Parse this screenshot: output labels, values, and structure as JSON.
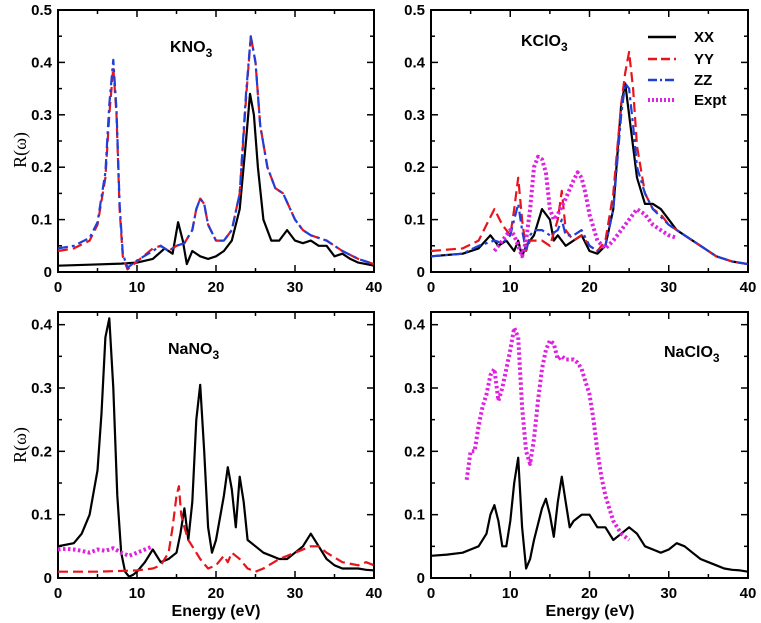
{
  "colors": {
    "XX": "#000000",
    "YY": "#e8141c",
    "ZZ": "#1f3fd9",
    "Expt": "#e020e0"
  },
  "legend": {
    "position": "top-right of KClO3 panel",
    "items": [
      "XX",
      "YY",
      "ZZ",
      "Expt"
    ]
  },
  "chart_data": [
    {
      "type": "line",
      "id": "p0",
      "title": {
        "base": "KNO",
        "sub": "3"
      },
      "xlabel": "",
      "ylabel": "R(ω)",
      "xlim": [
        0,
        40
      ],
      "ylim": [
        0,
        0.5
      ],
      "xticks": [
        0,
        10,
        20,
        30,
        40
      ],
      "yticks": [
        0,
        0.1,
        0.2,
        0.3,
        0.4,
        0.5
      ],
      "ytick_labels": [
        "0",
        "0.1",
        "0.2",
        "0.3",
        "0.4",
        "0.5"
      ],
      "grid": false,
      "series": [
        {
          "name": "XX",
          "style": "solid",
          "x": [
            0,
            4,
            8,
            10,
            12,
            13.5,
            14.5,
            15.2,
            15.8,
            16.3,
            17,
            18,
            19,
            20,
            21,
            22,
            23,
            23.8,
            24.3,
            24.8,
            25.3,
            26,
            27,
            28,
            29,
            30,
            31,
            32,
            33,
            34,
            35,
            36,
            37,
            38,
            39,
            40
          ],
          "y": [
            0.012,
            0.014,
            0.016,
            0.018,
            0.025,
            0.045,
            0.035,
            0.095,
            0.06,
            0.015,
            0.04,
            0.03,
            0.025,
            0.03,
            0.04,
            0.06,
            0.12,
            0.25,
            0.34,
            0.3,
            0.2,
            0.1,
            0.06,
            0.06,
            0.08,
            0.06,
            0.055,
            0.06,
            0.05,
            0.05,
            0.03,
            0.035,
            0.025,
            0.018,
            0.015,
            0.012
          ]
        },
        {
          "name": "YY",
          "style": "dash",
          "x": [
            0,
            2,
            4,
            5,
            6,
            6.5,
            7,
            7.4,
            7.8,
            8.2,
            8.8,
            10,
            12,
            13,
            14,
            15,
            16,
            17,
            17.5,
            18,
            18.5,
            19,
            20,
            21,
            22,
            23,
            23.8,
            24.4,
            25,
            25.6,
            26.5,
            27.5,
            28.5,
            30,
            31,
            32,
            33,
            34,
            36,
            38,
            40
          ],
          "y": [
            0.04,
            0.045,
            0.06,
            0.09,
            0.18,
            0.3,
            0.39,
            0.3,
            0.12,
            0.03,
            0.005,
            0.02,
            0.045,
            0.05,
            0.04,
            0.05,
            0.055,
            0.08,
            0.12,
            0.14,
            0.13,
            0.09,
            0.06,
            0.06,
            0.08,
            0.15,
            0.33,
            0.45,
            0.4,
            0.28,
            0.2,
            0.16,
            0.15,
            0.1,
            0.08,
            0.07,
            0.065,
            0.06,
            0.04,
            0.025,
            0.015
          ]
        },
        {
          "name": "ZZ",
          "style": "dashdot",
          "x": [
            0,
            2,
            4,
            5,
            6,
            6.5,
            7,
            7.4,
            7.8,
            8.2,
            8.8,
            10,
            12,
            13,
            14,
            15,
            16,
            17,
            17.5,
            18,
            18.5,
            19,
            20,
            21,
            22,
            23,
            23.8,
            24.4,
            25,
            25.6,
            26.5,
            27.5,
            28.5,
            30,
            31,
            32,
            33,
            34,
            36,
            38,
            40
          ],
          "y": [
            0.045,
            0.05,
            0.065,
            0.095,
            0.19,
            0.32,
            0.405,
            0.31,
            0.13,
            0.035,
            0.008,
            0.022,
            0.04,
            0.05,
            0.04,
            0.05,
            0.055,
            0.08,
            0.12,
            0.14,
            0.13,
            0.09,
            0.06,
            0.06,
            0.08,
            0.15,
            0.34,
            0.45,
            0.4,
            0.28,
            0.2,
            0.16,
            0.15,
            0.1,
            0.08,
            0.07,
            0.065,
            0.06,
            0.04,
            0.025,
            0.015
          ]
        }
      ]
    },
    {
      "type": "line",
      "id": "p1",
      "title": {
        "base": "KClO",
        "sub": "3"
      },
      "xlabel": "",
      "ylabel": "",
      "xlim": [
        0,
        40
      ],
      "ylim": [
        0,
        0.5
      ],
      "xticks": [
        0,
        10,
        20,
        30,
        40
      ],
      "yticks": [
        0,
        0.1,
        0.2,
        0.3,
        0.4,
        0.5
      ],
      "ytick_labels": [
        "0",
        "0.1",
        "0.2",
        "0.3",
        "0.4",
        "0.5"
      ],
      "grid": false,
      "series": [
        {
          "name": "XX",
          "style": "solid",
          "x": [
            0,
            4,
            6,
            7.5,
            8.5,
            9.5,
            10.5,
            11,
            11.5,
            12,
            13,
            14,
            15,
            15.5,
            16,
            17,
            18,
            19,
            20,
            21,
            22,
            23,
            24,
            24.5,
            25,
            26,
            27,
            28,
            29,
            30,
            31,
            32,
            34,
            36,
            38,
            40
          ],
          "y": [
            0.03,
            0.035,
            0.045,
            0.07,
            0.05,
            0.06,
            0.04,
            0.06,
            0.03,
            0.05,
            0.07,
            0.12,
            0.1,
            0.06,
            0.07,
            0.05,
            0.06,
            0.07,
            0.04,
            0.035,
            0.05,
            0.12,
            0.32,
            0.36,
            0.3,
            0.18,
            0.13,
            0.13,
            0.12,
            0.1,
            0.08,
            0.07,
            0.05,
            0.03,
            0.02,
            0.015
          ]
        },
        {
          "name": "YY",
          "style": "dash",
          "x": [
            0,
            4,
            6,
            7,
            8,
            9,
            10,
            10.5,
            11,
            11.5,
            12,
            12.5,
            13,
            14,
            15,
            16,
            16.5,
            17,
            18,
            19,
            20,
            21,
            22,
            23,
            24,
            24.5,
            25,
            25.5,
            26,
            27,
            28,
            29,
            30,
            32,
            34,
            36,
            38,
            40
          ],
          "y": [
            0.04,
            0.045,
            0.06,
            0.09,
            0.12,
            0.09,
            0.07,
            0.12,
            0.18,
            0.1,
            0.04,
            0.06,
            0.06,
            0.06,
            0.05,
            0.1,
            0.155,
            0.08,
            0.06,
            0.07,
            0.05,
            0.04,
            0.06,
            0.15,
            0.32,
            0.38,
            0.42,
            0.35,
            0.24,
            0.15,
            0.12,
            0.11,
            0.09,
            0.07,
            0.05,
            0.03,
            0.02,
            0.015
          ]
        },
        {
          "name": "ZZ",
          "style": "dashdot",
          "x": [
            0,
            4,
            6,
            8,
            9,
            10,
            10.5,
            11,
            11.5,
            12,
            12.5,
            13,
            14,
            15,
            16,
            16.5,
            17,
            18,
            19,
            20,
            21,
            22,
            23,
            24,
            24.5,
            25,
            25.5,
            26,
            27,
            28,
            30,
            32,
            34,
            36,
            38,
            40
          ],
          "y": [
            0.03,
            0.035,
            0.05,
            0.06,
            0.055,
            0.07,
            0.1,
            0.13,
            0.08,
            0.04,
            0.07,
            0.08,
            0.08,
            0.07,
            0.08,
            0.1,
            0.07,
            0.07,
            0.08,
            0.05,
            0.04,
            0.05,
            0.12,
            0.3,
            0.36,
            0.35,
            0.28,
            0.2,
            0.15,
            0.12,
            0.09,
            0.07,
            0.05,
            0.03,
            0.02,
            0.015
          ]
        },
        {
          "name": "Expt",
          "style": "dot",
          "x": [
            8,
            9,
            10,
            10.5,
            11,
            11.5,
            12,
            12.5,
            13,
            13.5,
            14,
            14.5,
            15,
            15.5,
            16,
            17,
            18,
            18.5,
            19,
            19.5,
            20,
            21,
            22,
            23,
            24,
            25,
            26,
            27,
            28,
            29,
            30,
            31
          ],
          "y": [
            0.04,
            0.06,
            0.08,
            0.07,
            0.05,
            0.03,
            0.06,
            0.12,
            0.2,
            0.22,
            0.215,
            0.19,
            0.12,
            0.1,
            0.11,
            0.14,
            0.175,
            0.19,
            0.18,
            0.15,
            0.11,
            0.06,
            0.045,
            0.06,
            0.08,
            0.1,
            0.12,
            0.11,
            0.09,
            0.08,
            0.07,
            0.065
          ]
        }
      ]
    },
    {
      "type": "line",
      "id": "p2",
      "title": {
        "base": "NaNO",
        "sub": "3"
      },
      "xlabel": "Energy (eV)",
      "ylabel": "R(ω)",
      "xlim": [
        0,
        40
      ],
      "ylim": [
        0,
        0.42
      ],
      "xticks": [
        0,
        10,
        20,
        30,
        40
      ],
      "yticks": [
        0,
        0.1,
        0.2,
        0.3,
        0.4
      ],
      "ytick_labels": [
        "0",
        "0.1",
        "0.2",
        "0.3",
        "0.4"
      ],
      "grid": false,
      "series": [
        {
          "name": "XX",
          "style": "solid",
          "x": [
            0,
            2,
            3,
            4,
            5,
            5.5,
            6,
            6.5,
            7,
            7.5,
            8,
            8.5,
            9,
            9.5,
            10,
            11,
            12,
            13,
            14,
            15,
            15.5,
            16,
            16.5,
            17,
            17.5,
            18,
            18.5,
            19,
            19.5,
            20,
            21,
            21.5,
            22,
            22.5,
            23,
            23.5,
            24,
            25,
            26,
            27,
            28,
            29,
            30,
            31,
            32,
            33,
            34,
            35,
            36,
            37,
            38,
            39,
            40
          ],
          "y": [
            0.05,
            0.055,
            0.07,
            0.1,
            0.17,
            0.26,
            0.38,
            0.41,
            0.3,
            0.13,
            0.04,
            0.01,
            0.002,
            0.005,
            0.01,
            0.025,
            0.045,
            0.025,
            0.03,
            0.04,
            0.07,
            0.11,
            0.06,
            0.12,
            0.25,
            0.305,
            0.2,
            0.08,
            0.04,
            0.06,
            0.13,
            0.175,
            0.14,
            0.08,
            0.16,
            0.12,
            0.06,
            0.05,
            0.04,
            0.035,
            0.03,
            0.03,
            0.04,
            0.05,
            0.07,
            0.05,
            0.03,
            0.02,
            0.015,
            0.015,
            0.015,
            0.013,
            0.012
          ]
        },
        {
          "name": "YY",
          "style": "dash",
          "x": [
            0,
            5,
            10,
            12,
            13,
            14,
            14.5,
            15,
            15.3,
            15.6,
            16,
            16.5,
            17,
            18,
            19,
            20,
            21,
            21.5,
            22,
            23,
            24,
            25,
            26,
            28,
            30,
            32,
            33,
            34,
            36,
            38,
            39,
            40
          ],
          "y": [
            0.01,
            0.01,
            0.012,
            0.015,
            0.02,
            0.04,
            0.08,
            0.13,
            0.145,
            0.1,
            0.08,
            0.06,
            0.05,
            0.03,
            0.015,
            0.02,
            0.035,
            0.025,
            0.04,
            0.03,
            0.015,
            0.01,
            0.015,
            0.03,
            0.04,
            0.05,
            0.05,
            0.04,
            0.025,
            0.02,
            0.025,
            0.02
          ]
        },
        {
          "name": "Expt",
          "style": "dot",
          "x": [
            0,
            1,
            2,
            3,
            4,
            5,
            6,
            7,
            8,
            9,
            10,
            11,
            12
          ],
          "y": [
            0.045,
            0.046,
            0.045,
            0.043,
            0.04,
            0.045,
            0.043,
            0.047,
            0.04,
            0.035,
            0.04,
            0.045,
            0.05
          ]
        }
      ]
    },
    {
      "type": "line",
      "id": "p3",
      "title": {
        "base": "NaClO",
        "sub": "3"
      },
      "xlabel": "Energy (eV)",
      "ylabel": "",
      "xlim": [
        0,
        40
      ],
      "ylim": [
        0,
        0.42
      ],
      "xticks": [
        0,
        10,
        20,
        30,
        40
      ],
      "yticks": [
        0,
        0.1,
        0.2,
        0.3,
        0.4
      ],
      "ytick_labels": [
        "0",
        "0.1",
        "0.2",
        "0.3",
        "0.4"
      ],
      "grid": false,
      "series": [
        {
          "name": "XX",
          "style": "solid",
          "x": [
            0,
            2,
            4,
            5,
            6,
            7,
            7.5,
            8,
            8.5,
            9,
            9.5,
            10,
            10.5,
            11,
            11.5,
            12,
            12.5,
            13,
            14,
            14.5,
            15,
            15.5,
            16,
            16.5,
            17,
            17.5,
            18,
            19,
            20,
            21,
            22,
            23,
            24,
            25,
            26,
            27,
            28,
            29,
            30,
            31,
            32,
            33,
            34,
            35,
            36,
            37,
            38,
            39,
            40
          ],
          "y": [
            0.035,
            0.037,
            0.04,
            0.045,
            0.05,
            0.07,
            0.1,
            0.115,
            0.09,
            0.05,
            0.05,
            0.09,
            0.15,
            0.19,
            0.08,
            0.015,
            0.03,
            0.06,
            0.11,
            0.125,
            0.1,
            0.065,
            0.12,
            0.16,
            0.12,
            0.08,
            0.09,
            0.1,
            0.1,
            0.08,
            0.08,
            0.06,
            0.07,
            0.08,
            0.07,
            0.05,
            0.045,
            0.04,
            0.045,
            0.055,
            0.05,
            0.04,
            0.03,
            0.025,
            0.02,
            0.015,
            0.013,
            0.012,
            0.01
          ]
        },
        {
          "name": "Expt",
          "style": "dot",
          "x": [
            4.5,
            5,
            5.5,
            6,
            6.5,
            7,
            7.5,
            8,
            8.5,
            9,
            9.5,
            10,
            10.5,
            11,
            11.5,
            12,
            12.5,
            13,
            13.5,
            14,
            14.5,
            15,
            15.5,
            16,
            16.5,
            17,
            17.5,
            18,
            18.5,
            19,
            19.5,
            20,
            20.5,
            21,
            21.5,
            22,
            22.5,
            23,
            23.5,
            24,
            24.5,
            25
          ],
          "y": [
            0.155,
            0.2,
            0.2,
            0.24,
            0.27,
            0.29,
            0.32,
            0.33,
            0.28,
            0.3,
            0.33,
            0.36,
            0.395,
            0.38,
            0.27,
            0.2,
            0.18,
            0.22,
            0.28,
            0.33,
            0.36,
            0.375,
            0.37,
            0.345,
            0.35,
            0.345,
            0.345,
            0.345,
            0.34,
            0.33,
            0.31,
            0.29,
            0.25,
            0.2,
            0.16,
            0.13,
            0.11,
            0.09,
            0.08,
            0.07,
            0.065,
            0.06
          ]
        }
      ]
    }
  ]
}
